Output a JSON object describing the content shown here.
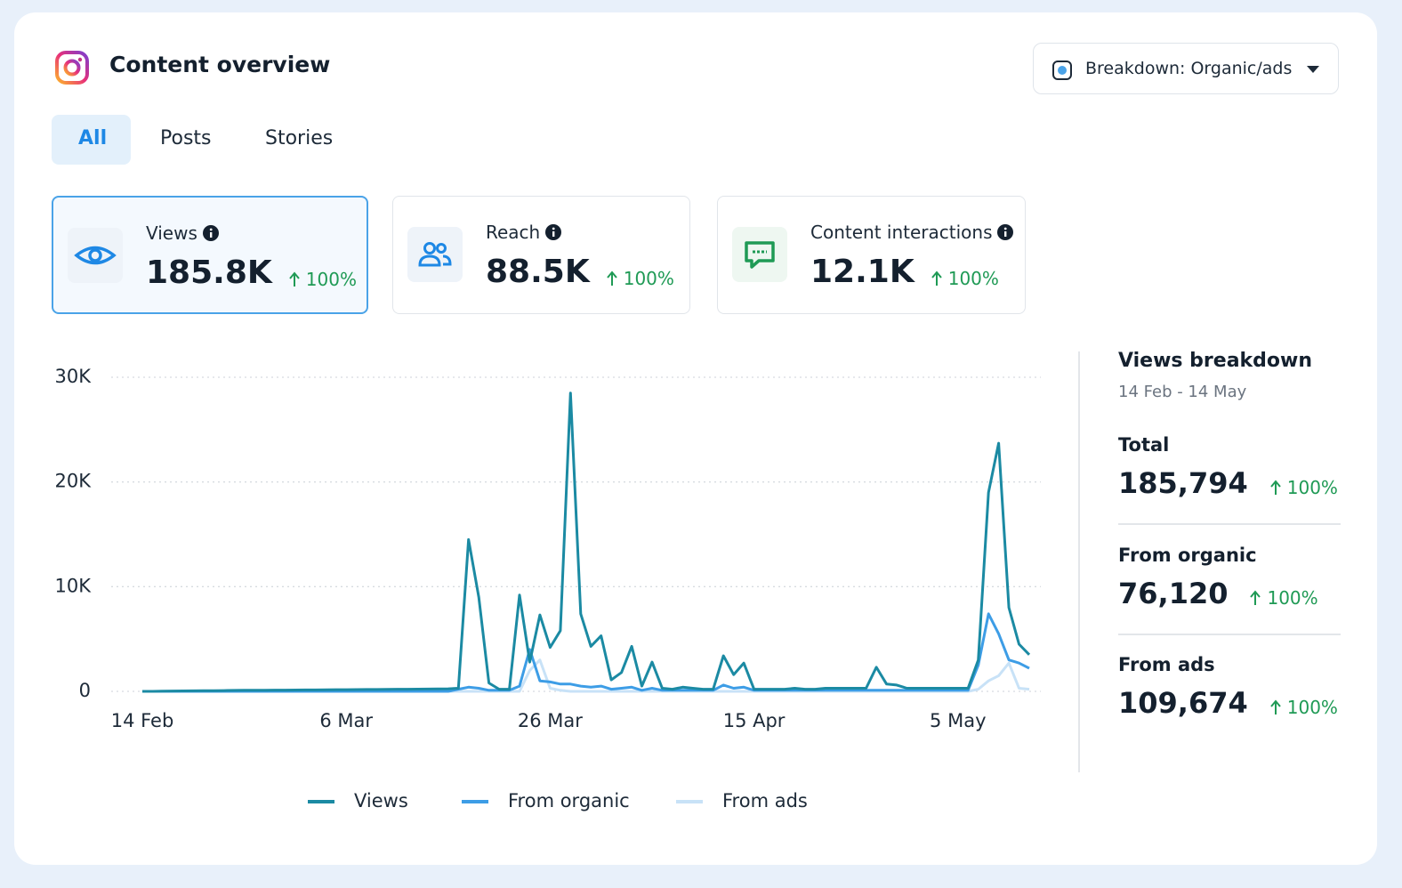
{
  "header": {
    "title": "Content overview",
    "breakdown_button": "Breakdown: Organic/ads"
  },
  "tabs": [
    "All",
    "Posts",
    "Stories"
  ],
  "metrics": [
    {
      "label": "Views",
      "value": "185.8K",
      "change": "100%"
    },
    {
      "label": "Reach",
      "value": "88.5K",
      "change": "100%"
    },
    {
      "label": "Content interactions",
      "value": "12.1K",
      "change": "100%"
    }
  ],
  "breakdown": {
    "title": "Views breakdown",
    "range": "14 Feb - 14 May",
    "items": [
      {
        "label": "Total",
        "value": "185,794",
        "change": "100%"
      },
      {
        "label": "From organic",
        "value": "76,120",
        "change": "100%"
      },
      {
        "label": "From ads",
        "value": "109,674",
        "change": "100%"
      }
    ]
  },
  "chart_data": {
    "type": "line",
    "categories": [
      "14 Feb",
      null,
      null,
      null,
      null,
      null,
      null,
      null,
      null,
      null,
      null,
      null,
      null,
      null,
      null,
      null,
      null,
      null,
      null,
      null,
      "6 Mar",
      null,
      null,
      null,
      null,
      null,
      null,
      null,
      null,
      null,
      null,
      null,
      null,
      null,
      null,
      null,
      null,
      null,
      null,
      null,
      "26 Mar",
      null,
      null,
      null,
      null,
      null,
      null,
      null,
      null,
      null,
      null,
      null,
      null,
      null,
      null,
      null,
      null,
      null,
      null,
      null,
      "15 Apr",
      null,
      null,
      null,
      null,
      null,
      null,
      null,
      null,
      null,
      null,
      null,
      null,
      null,
      null,
      null,
      null,
      null,
      null,
      null,
      "5 May",
      null,
      null,
      null,
      null,
      null,
      null,
      null
    ],
    "series": [
      {
        "name": "Views",
        "color": "#1b8aa3",
        "values": [
          0,
          0,
          20,
          30,
          40,
          50,
          60,
          70,
          80,
          90,
          100,
          100,
          110,
          120,
          120,
          130,
          140,
          140,
          150,
          160,
          160,
          170,
          180,
          180,
          190,
          200,
          200,
          210,
          220,
          230,
          250,
          300,
          14500,
          9000,
          800,
          200,
          200,
          9200,
          2800,
          7300,
          4200,
          5800,
          28500,
          7400,
          4300,
          5300,
          1100,
          1800,
          4300,
          500,
          2800,
          300,
          200,
          400,
          300,
          200,
          200,
          3400,
          1600,
          2700,
          200,
          200,
          200,
          200,
          300,
          200,
          200,
          300,
          300,
          300,
          300,
          300,
          2300,
          700,
          600,
          300,
          300,
          300,
          300,
          300,
          300,
          300,
          3000,
          19000,
          23700,
          8000,
          4500,
          3500
        ]
      },
      {
        "name": "From organic",
        "color": "#3d9de6",
        "values": [
          0,
          0,
          0,
          0,
          0,
          0,
          0,
          0,
          0,
          0,
          0,
          0,
          0,
          0,
          0,
          0,
          0,
          0,
          0,
          0,
          0,
          0,
          0,
          0,
          0,
          0,
          0,
          0,
          0,
          0,
          0,
          200,
          400,
          300,
          100,
          100,
          100,
          500,
          4000,
          1000,
          900,
          700,
          700,
          500,
          400,
          500,
          200,
          300,
          400,
          100,
          300,
          100,
          100,
          100,
          100,
          100,
          100,
          600,
          300,
          400,
          100,
          100,
          100,
          100,
          100,
          100,
          100,
          100,
          100,
          100,
          100,
          100,
          100,
          100,
          100,
          100,
          100,
          100,
          100,
          100,
          100,
          100,
          2500,
          7400,
          5500,
          3000,
          2700,
          2200
        ]
      },
      {
        "name": "From ads",
        "color": "#c8e2f7",
        "values": [
          0,
          0,
          0,
          0,
          0,
          0,
          0,
          0,
          0,
          0,
          0,
          0,
          0,
          0,
          0,
          0,
          0,
          0,
          0,
          0,
          0,
          0,
          0,
          0,
          0,
          0,
          0,
          0,
          0,
          0,
          0,
          0,
          0,
          0,
          0,
          0,
          0,
          0,
          2000,
          3000,
          300,
          100,
          0,
          0,
          0,
          0,
          0,
          0,
          0,
          0,
          0,
          0,
          0,
          0,
          0,
          0,
          0,
          0,
          0,
          0,
          0,
          0,
          0,
          0,
          0,
          0,
          0,
          0,
          0,
          0,
          0,
          0,
          0,
          0,
          0,
          0,
          0,
          0,
          0,
          0,
          0,
          0,
          200,
          1000,
          1500,
          2700,
          300,
          200
        ]
      }
    ],
    "ylim": [
      0,
      30000
    ],
    "yticks": [
      0,
      {
        "value": 10000,
        "label": "10K"
      },
      {
        "value": 20000,
        "label": "20K"
      },
      {
        "value": 30000,
        "label": "30K"
      }
    ],
    "grid": true
  }
}
